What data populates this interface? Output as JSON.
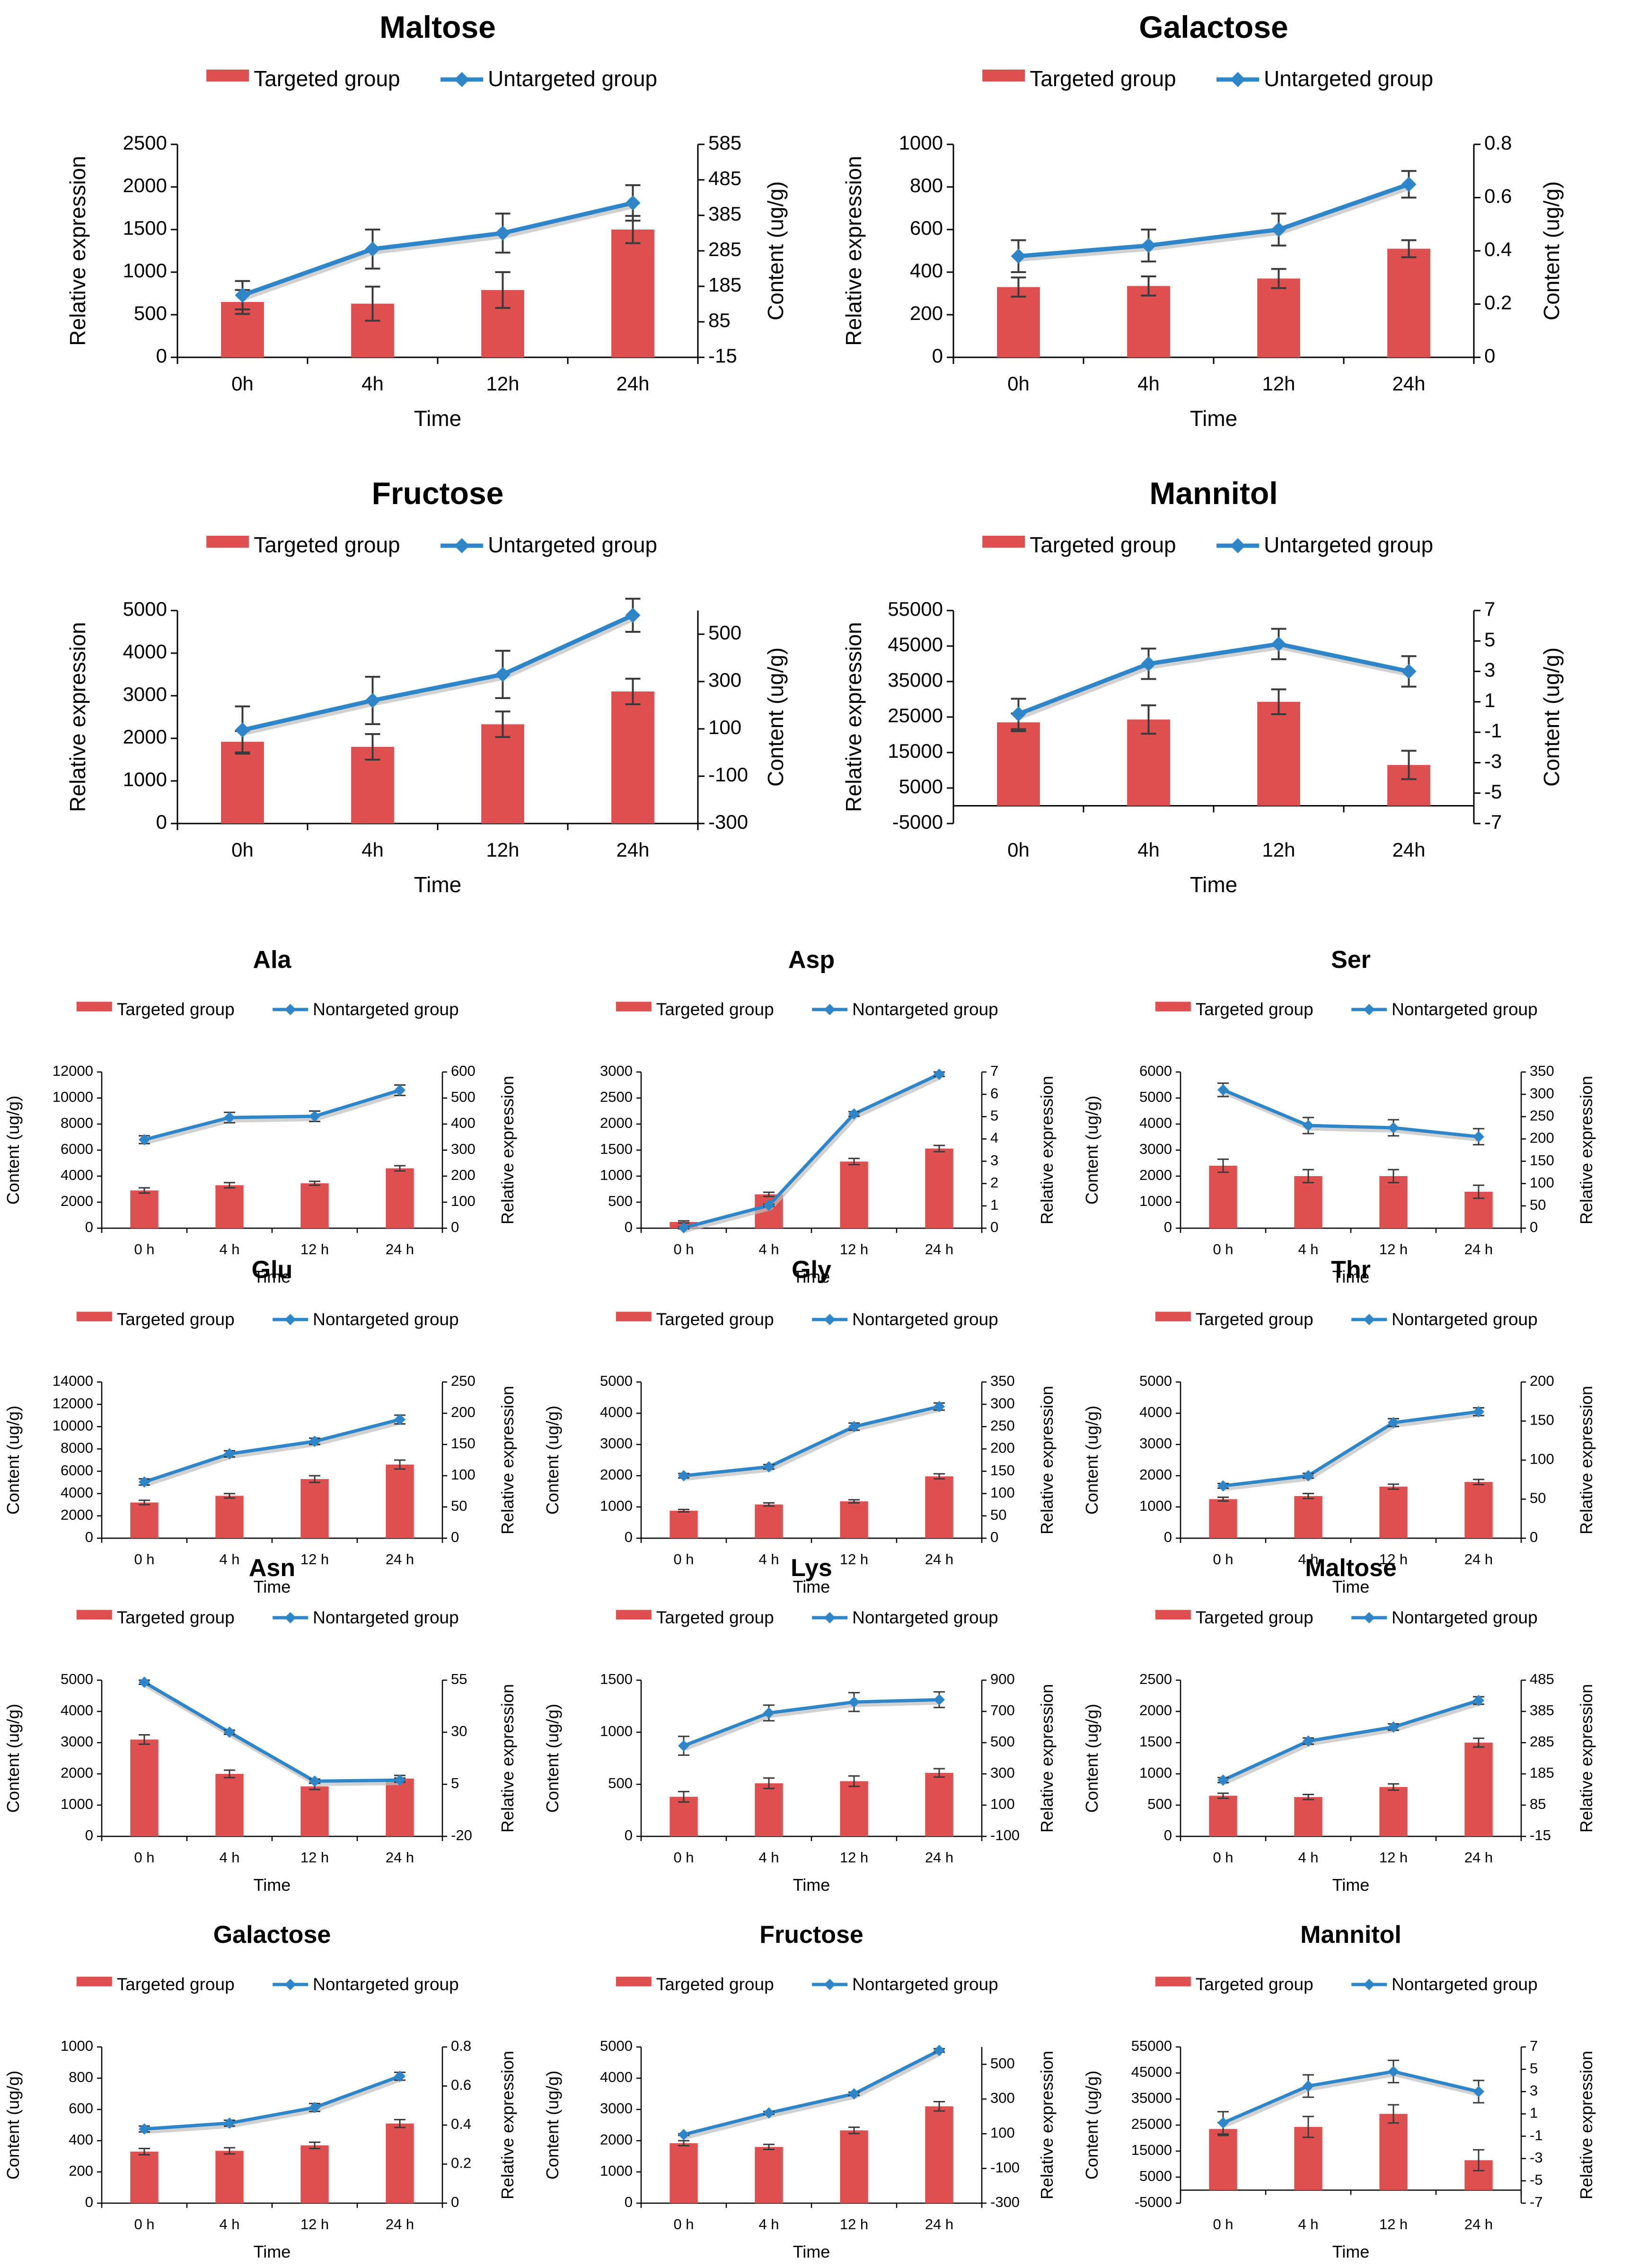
{
  "colors": {
    "bar": "#DE4F4F",
    "line": "#2E86C8",
    "axis": "#000000"
  },
  "chart_data": [
    {
      "type": "bar+line",
      "title": "Maltose",
      "legend": [
        "Targeted group",
        "Untargeted group"
      ],
      "categories": [
        "0h",
        "4h",
        "12h",
        "24h"
      ],
      "xlabel": "Time",
      "ylabel_left": "Relative expression",
      "ylabel_right": "Content (ug/g)",
      "bars_axis": "left",
      "line_axis": "right",
      "left_ticks": [
        "0",
        "500",
        "1000",
        "1500",
        "2000",
        "2500"
      ],
      "ylim_left": [
        0,
        2500
      ],
      "right_ticks": [
        "-15",
        "85",
        "185",
        "285",
        "385",
        "485",
        "585"
      ],
      "ylim_right": [
        -15,
        585
      ],
      "bars": [
        650,
        630,
        790,
        1500
      ],
      "bars_err": [
        140,
        200,
        210,
        160
      ],
      "line": [
        160,
        290,
        335,
        420
      ],
      "line_err": [
        40,
        55,
        55,
        50
      ]
    },
    {
      "type": "bar+line",
      "title": "Galactose",
      "legend": [
        "Targeted group",
        "Untargeted group"
      ],
      "categories": [
        "0h",
        "4h",
        "12h",
        "24h"
      ],
      "xlabel": "Time",
      "ylabel_left": "Relative expression",
      "ylabel_right": "Content (ug/g)",
      "bars_axis": "left",
      "line_axis": "right",
      "left_ticks": [
        "0",
        "200",
        "400",
        "600",
        "800",
        "1000"
      ],
      "ylim_left": [
        0,
        1000
      ],
      "right_ticks": [
        "0",
        "0.2",
        "0.4",
        "0.6",
        "0.8"
      ],
      "ylim_right": [
        0,
        0.8
      ],
      "bars": [
        330,
        335,
        370,
        510
      ],
      "bars_err": [
        45,
        45,
        45,
        40
      ],
      "line": [
        0.38,
        0.42,
        0.48,
        0.65
      ],
      "line_err": [
        0.06,
        0.06,
        0.06,
        0.05
      ]
    },
    {
      "type": "bar+line",
      "title": "Fructose",
      "legend": [
        "Targeted group",
        "Untargeted group"
      ],
      "categories": [
        "0h",
        "4h",
        "12h",
        "24h"
      ],
      "xlabel": "Time",
      "ylabel_left": "Relative expression",
      "ylabel_right": "Content (ug/g)",
      "bars_axis": "left",
      "line_axis": "right",
      "left_ticks": [
        "0",
        "1000",
        "2000",
        "3000",
        "4000",
        "5000"
      ],
      "ylim_left": [
        0,
        5000
      ],
      "right_ticks": [
        "-300",
        "-100",
        "100",
        "300",
        "500"
      ],
      "ylim_right": [
        -300,
        600
      ],
      "bars": [
        1920,
        1800,
        2330,
        3100
      ],
      "bars_err": [
        250,
        300,
        300,
        300
      ],
      "line": [
        95,
        220,
        330,
        580
      ],
      "line_err": [
        100,
        100,
        100,
        70
      ]
    },
    {
      "type": "bar+line",
      "title": "Mannitol",
      "legend": [
        "Targeted group",
        "Untargeted group"
      ],
      "categories": [
        "0h",
        "4h",
        "12h",
        "24h"
      ],
      "xlabel": "Time",
      "ylabel_left": "Relative expression",
      "ylabel_right": "Content (ug/g)",
      "bars_axis": "left",
      "line_axis": "right",
      "left_ticks": [
        "-5000",
        "5000",
        "15000",
        "25000",
        "35000",
        "45000",
        "55000"
      ],
      "ylim_left": [
        -5000,
        55000
      ],
      "right_ticks": [
        "-7",
        "-5",
        "-3",
        "-1",
        "1",
        "3",
        "5",
        "7"
      ],
      "ylim_right": [
        -7,
        7
      ],
      "bars": [
        23500,
        24300,
        29300,
        11500
      ],
      "bars_err": [
        2500,
        4000,
        3500,
        4000
      ],
      "line": [
        0.2,
        3.5,
        4.8,
        3
      ],
      "line_err": [
        1,
        1,
        1,
        1
      ]
    },
    {
      "type": "bar+line",
      "title": "Ala",
      "legend": [
        "Targeted group",
        "Nontargeted group"
      ],
      "categories": [
        "0 h",
        "4 h",
        "12 h",
        "24 h"
      ],
      "xlabel": "Time",
      "ylabel_left": "Content (ug/g)",
      "ylabel_right": "Relative expression",
      "bars_axis": "left",
      "line_axis": "right",
      "left_ticks": [
        "0",
        "2000",
        "4000",
        "6000",
        "8000",
        "10000",
        "12000"
      ],
      "ylim_left": [
        0,
        12000
      ],
      "right_ticks": [
        "0",
        "100",
        "200",
        "300",
        "400",
        "500",
        "600"
      ],
      "ylim_right": [
        0,
        600
      ],
      "bars": [
        2900,
        3300,
        3450,
        4600
      ],
      "bars_err": [
        200,
        200,
        150,
        200
      ],
      "line": [
        340,
        425,
        430,
        530
      ],
      "line_err": [
        15,
        20,
        20,
        20
      ]
    },
    {
      "type": "bar+line",
      "title": "Asp",
      "legend": [
        "Targeted group",
        "Nontargeted group"
      ],
      "categories": [
        "0 h",
        "4 h",
        "12 h",
        "24 h"
      ],
      "xlabel": "Time",
      "ylabel_left": "",
      "ylabel_right": "Relative expression",
      "bars_axis": "left",
      "line_axis": "right",
      "left_ticks": [
        "0",
        "500",
        "1000",
        "1500",
        "2000",
        "2500",
        "3000"
      ],
      "ylim_left": [
        0,
        3000
      ],
      "right_ticks": [
        "0",
        "1",
        "2",
        "3",
        "4",
        "5",
        "6",
        "7"
      ],
      "ylim_right": [
        0,
        7
      ],
      "bars": [
        120,
        650,
        1280,
        1530
      ],
      "bars_err": [
        20,
        40,
        60,
        60
      ],
      "line": [
        0.02,
        1.02,
        5.12,
        6.9
      ],
      "line_err": [
        0.05,
        0.05,
        0.1,
        0.1
      ]
    },
    {
      "type": "bar+line",
      "title": "Ser",
      "legend": [
        "Targeted group",
        "Nontargeted group"
      ],
      "categories": [
        "0 h",
        "4 h",
        "12 h",
        "24 h"
      ],
      "xlabel": "Time",
      "ylabel_left": "Content (ug/g)",
      "ylabel_right": "Relative expression",
      "bars_axis": "left",
      "line_axis": "right",
      "left_ticks": [
        "0",
        "1000",
        "2000",
        "3000",
        "4000",
        "5000",
        "6000"
      ],
      "ylim_left": [
        0,
        6000
      ],
      "right_ticks": [
        "0",
        "50",
        "100",
        "150",
        "200",
        "250",
        "300",
        "350"
      ],
      "ylim_right": [
        0,
        350
      ],
      "bars": [
        2400,
        2000,
        2000,
        1400
      ],
      "bars_err": [
        250,
        250,
        250,
        250
      ],
      "line": [
        310,
        230,
        225,
        205
      ],
      "line_err": [
        15,
        18,
        18,
        18
      ]
    },
    {
      "type": "bar+line",
      "title": "Glu",
      "legend": [
        "Targeted group",
        "Nontargeted group"
      ],
      "categories": [
        "0 h",
        "4 h",
        "12 h",
        "24 h"
      ],
      "xlabel": "Time",
      "ylabel_left": "Content (ug/g)",
      "ylabel_right": "Relative expression",
      "bars_axis": "left",
      "line_axis": "right",
      "left_ticks": [
        "0",
        "2000",
        "4000",
        "6000",
        "8000",
        "10000",
        "12000",
        "14000"
      ],
      "ylim_left": [
        0,
        14000
      ],
      "right_ticks": [
        "0",
        "50",
        "100",
        "150",
        "200",
        "250"
      ],
      "ylim_right": [
        0,
        250
      ],
      "bars": [
        3200,
        3800,
        5300,
        6600
      ],
      "bars_err": [
        200,
        200,
        300,
        400
      ],
      "line": [
        90,
        135,
        155,
        190
      ],
      "line_err": [
        5,
        5,
        5,
        7
      ]
    },
    {
      "type": "bar+line",
      "title": "Gly",
      "legend": [
        "Targeted group",
        "Nontargeted group"
      ],
      "categories": [
        "0 h",
        "4 h",
        "12 h",
        "24 h"
      ],
      "xlabel": "Time",
      "ylabel_left": "Content (ug/g)",
      "ylabel_right": "Relative expression",
      "bars_axis": "left",
      "line_axis": "right",
      "left_ticks": [
        "0",
        "1000",
        "2000",
        "3000",
        "4000",
        "5000"
      ],
      "ylim_left": [
        0,
        5000
      ],
      "right_ticks": [
        "0",
        "50",
        "100",
        "150",
        "200",
        "250",
        "300",
        "350"
      ],
      "ylim_right": [
        0,
        350
      ],
      "bars": [
        880,
        1080,
        1180,
        1980
      ],
      "bars_err": [
        40,
        50,
        50,
        80
      ],
      "line": [
        140,
        160,
        250,
        295
      ],
      "line_err": [
        5,
        5,
        8,
        8
      ]
    },
    {
      "type": "bar+line",
      "title": "Thr",
      "legend": [
        "Targeted group",
        "Nontargeted group"
      ],
      "categories": [
        "0 h",
        "4 h",
        "12 h",
        "24 h"
      ],
      "xlabel": "Time",
      "ylabel_left": "Content (ug/g)",
      "ylabel_right": "Relative expression",
      "bars_axis": "left",
      "line_axis": "right",
      "left_ticks": [
        "0",
        "1000",
        "2000",
        "3000",
        "4000",
        "5000"
      ],
      "ylim_left": [
        0,
        5000
      ],
      "right_ticks": [
        "0",
        "50",
        "100",
        "150",
        "200"
      ],
      "ylim_right": [
        0,
        200
      ],
      "bars": [
        1250,
        1350,
        1650,
        1800
      ],
      "bars_err": [
        60,
        80,
        80,
        80
      ],
      "line": [
        67,
        80,
        148,
        162
      ],
      "line_err": [
        3,
        3,
        5,
        5
      ]
    },
    {
      "type": "bar+line",
      "title": "Asn",
      "legend": [
        "Targeted group",
        "Nontargeted group"
      ],
      "categories": [
        "0 h",
        "4 h",
        "12 h",
        "24 h"
      ],
      "xlabel": "Time",
      "ylabel_left": "Content (ug/g)",
      "ylabel_right": "Relative expression",
      "bars_axis": "left",
      "line_axis": "right",
      "left_ticks": [
        "0",
        "1000",
        "2000",
        "3000",
        "4000",
        "5000"
      ],
      "ylim_left": [
        0,
        5000
      ],
      "right_ticks": [
        "-20",
        "5",
        "30",
        "55"
      ],
      "ylim_right": [
        -20,
        55
      ],
      "bars": [
        3100,
        2000,
        1600,
        1850
      ],
      "bars_err": [
        150,
        120,
        100,
        100
      ],
      "line": [
        54,
        30,
        6.5,
        7
      ],
      "line_err": [
        1,
        1,
        1,
        1
      ]
    },
    {
      "type": "bar+line",
      "title": "Lys",
      "legend": [
        "Targeted group",
        "Nontargeted group"
      ],
      "categories": [
        "0 h",
        "4 h",
        "12 h",
        "24 h"
      ],
      "xlabel": "Time",
      "ylabel_left": "Content (ug/g)",
      "ylabel_right": "Relative expression",
      "bars_axis": "left",
      "line_axis": "right",
      "left_ticks": [
        "0",
        "500",
        "1000",
        "1500"
      ],
      "ylim_left": [
        0,
        1500
      ],
      "right_ticks": [
        "-100",
        "100",
        "300",
        "500",
        "700",
        "900"
      ],
      "ylim_right": [
        -100,
        900
      ],
      "bars": [
        380,
        510,
        530,
        610
      ],
      "bars_err": [
        50,
        50,
        50,
        40
      ],
      "line": [
        480,
        690,
        760,
        775
      ],
      "line_err": [
        60,
        50,
        60,
        50
      ]
    },
    {
      "type": "bar+line",
      "title": "Maltose",
      "legend": [
        "Targeted group",
        "Nontargeted group"
      ],
      "categories": [
        "0 h",
        "4 h",
        "12 h",
        "24 h"
      ],
      "xlabel": "Time",
      "ylabel_left": "Content (ug/g)",
      "ylabel_right": "Relative expression",
      "bars_axis": "left",
      "line_axis": "right",
      "left_ticks": [
        "0",
        "500",
        "1000",
        "1500",
        "2000",
        "2500"
      ],
      "ylim_left": [
        0,
        2500
      ],
      "right_ticks": [
        "-15",
        "85",
        "185",
        "285",
        "385",
        "485"
      ],
      "ylim_right": [
        -15,
        485
      ],
      "bars": [
        650,
        630,
        790,
        1500
      ],
      "bars_err": [
        40,
        40,
        50,
        70
      ],
      "line": [
        165,
        290,
        335,
        420
      ],
      "line_err": [
        8,
        10,
        10,
        12
      ]
    },
    {
      "type": "bar+line",
      "title": "Galactose",
      "legend": [
        "Targeted group",
        "Nontargeted group"
      ],
      "categories": [
        "0 h",
        "4 h",
        "12 h",
        "24 h"
      ],
      "xlabel": "Time",
      "ylabel_left": "Content (ug/g)",
      "ylabel_right": "Relative expression",
      "bars_axis": "left",
      "line_axis": "right",
      "left_ticks": [
        "0",
        "200",
        "400",
        "600",
        "800",
        "1000"
      ],
      "ylim_left": [
        0,
        1000
      ],
      "right_ticks": [
        "0",
        "0.2",
        "0.4",
        "0.6",
        "0.8"
      ],
      "ylim_right": [
        0,
        0.8
      ],
      "bars": [
        330,
        335,
        370,
        510
      ],
      "bars_err": [
        20,
        20,
        20,
        25
      ],
      "line": [
        0.38,
        0.41,
        0.49,
        0.65
      ],
      "line_err": [
        0.015,
        0.015,
        0.02,
        0.02
      ]
    },
    {
      "type": "bar+line",
      "title": "Fructose",
      "legend": [
        "Targeted group",
        "Nontargeted group"
      ],
      "categories": [
        "0 h",
        "4 h",
        "12 h",
        "24 h"
      ],
      "xlabel": "Time",
      "ylabel_left": "Content (ug/g)",
      "ylabel_right": "Relative expression",
      "bars_axis": "left",
      "line_axis": "right",
      "left_ticks": [
        "0",
        "1000",
        "2000",
        "3000",
        "4000",
        "5000"
      ],
      "ylim_left": [
        0,
        5000
      ],
      "right_ticks": [
        "-300",
        "-100",
        "100",
        "300",
        "500"
      ],
      "ylim_right": [
        -300,
        600
      ],
      "bars": [
        1920,
        1800,
        2330,
        3100
      ],
      "bars_err": [
        80,
        80,
        100,
        150
      ],
      "line": [
        95,
        220,
        330,
        580
      ],
      "line_err": [
        5,
        8,
        10,
        10
      ]
    },
    {
      "type": "bar+line",
      "title": "Mannitol",
      "legend": [
        "Targeted group",
        "Nontargeted group"
      ],
      "categories": [
        "0 h",
        "4 h",
        "12 h",
        "24 h"
      ],
      "xlabel": "Time",
      "ylabel_left": "Content (ug/g)",
      "ylabel_right": "Relative expression",
      "bars_axis": "left",
      "line_axis": "right",
      "left_ticks": [
        "-5000",
        "5000",
        "15000",
        "25000",
        "35000",
        "45000",
        "55000"
      ],
      "ylim_left": [
        -5000,
        55000
      ],
      "right_ticks": [
        "-7",
        "-5",
        "-3",
        "-1",
        "1",
        "3",
        "5",
        "7"
      ],
      "ylim_right": [
        -7,
        7
      ],
      "bars": [
        23500,
        24300,
        29300,
        11500
      ],
      "bars_err": [
        2500,
        4000,
        3500,
        4000
      ],
      "line": [
        0.2,
        3.5,
        4.8,
        3
      ],
      "line_err": [
        1,
        1,
        1,
        1
      ]
    }
  ]
}
